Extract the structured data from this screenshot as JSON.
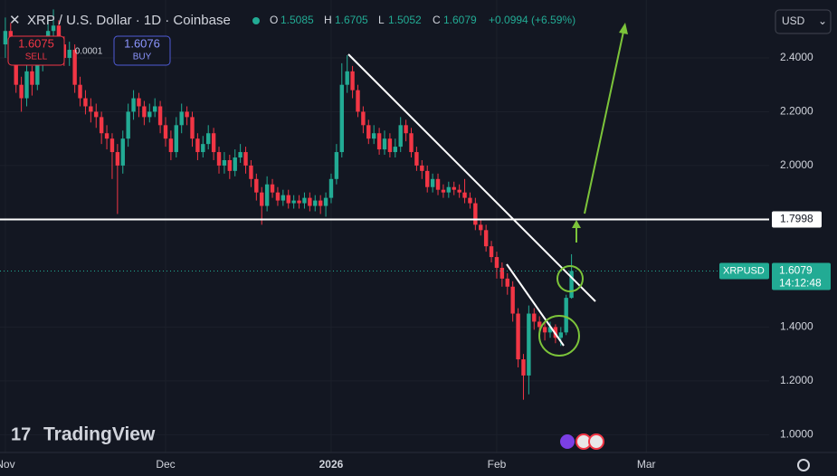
{
  "header": {
    "title": "XRP / U.S. Dollar · 1D · Coinbase",
    "o_label": "O",
    "h_label": "H",
    "l_label": "L",
    "c_label": "C",
    "change": "+0.0994 (+6.59%)",
    "sell_price": "1.6075",
    "sell": "SELL",
    "spread": "0.0001",
    "buy_price": "1.6076",
    "buy": "BUY",
    "currency": "USD",
    "symbol": "XRPUSD",
    "countdown": "14:12:48",
    "logo": "TradingView"
  },
  "chart_data": {
    "type": "candlestick",
    "up_color": "#22ab94",
    "down_color": "#f23645",
    "xlim": [
      -1,
      143
    ],
    "xticks": [
      {
        "value": 0,
        "label": "Nov"
      },
      {
        "value": 30,
        "label": "Dec"
      },
      {
        "value": 61,
        "label": "2026"
      },
      {
        "value": 92,
        "label": "Feb"
      },
      {
        "value": 120,
        "label": "Mar"
      }
    ],
    "ylim": [
      0.934,
      2.615
    ],
    "yticks": [
      {
        "value": 1.0,
        "label": "1.0000"
      },
      {
        "value": 1.2,
        "label": "1.2000"
      },
      {
        "value": 1.4,
        "label": "1.4000"
      },
      {
        "value": 2.0,
        "label": "2.0000"
      },
      {
        "value": 2.2,
        "label": "2.2000"
      },
      {
        "value": 2.4,
        "label": "2.4000"
      }
    ],
    "grid": true,
    "hline": {
      "value": 1.7998,
      "color": "#ffffff"
    },
    "ohlc": [
      [
        2.45,
        2.55,
        2.4,
        2.5
      ],
      [
        2.5,
        2.53,
        2.42,
        2.45
      ],
      [
        2.45,
        2.48,
        2.27,
        2.3
      ],
      [
        2.3,
        2.33,
        2.2,
        2.25
      ],
      [
        2.25,
        2.38,
        2.22,
        2.35
      ],
      [
        2.35,
        2.37,
        2.26,
        2.3
      ],
      [
        2.3,
        2.41,
        2.28,
        2.38
      ],
      [
        2.38,
        2.48,
        2.35,
        2.45
      ],
      [
        2.45,
        2.55,
        2.42,
        2.5
      ],
      [
        2.5,
        2.58,
        2.47,
        2.52
      ],
      [
        2.52,
        2.54,
        2.42,
        2.45
      ],
      [
        2.45,
        2.48,
        2.37,
        2.4
      ],
      [
        2.4,
        2.46,
        2.37,
        2.43
      ],
      [
        2.43,
        2.45,
        2.27,
        2.3
      ],
      [
        2.3,
        2.33,
        2.22,
        2.25
      ],
      [
        2.25,
        2.28,
        2.19,
        2.22
      ],
      [
        2.22,
        2.25,
        2.16,
        2.2
      ],
      [
        2.2,
        2.23,
        2.14,
        2.18
      ],
      [
        2.18,
        2.2,
        2.08,
        2.12
      ],
      [
        2.12,
        2.15,
        2.06,
        2.1
      ],
      [
        2.1,
        2.12,
        1.95,
        2.05
      ],
      [
        2.05,
        2.08,
        1.82,
        2.0
      ],
      [
        2.0,
        2.13,
        1.97,
        2.1
      ],
      [
        2.1,
        2.23,
        2.07,
        2.2
      ],
      [
        2.2,
        2.28,
        2.17,
        2.25
      ],
      [
        2.25,
        2.27,
        2.18,
        2.22
      ],
      [
        2.22,
        2.24,
        2.15,
        2.18
      ],
      [
        2.18,
        2.23,
        2.16,
        2.2
      ],
      [
        2.2,
        2.25,
        2.18,
        2.22
      ],
      [
        2.22,
        2.24,
        2.12,
        2.15
      ],
      [
        2.15,
        2.18,
        2.07,
        2.1
      ],
      [
        2.1,
        2.13,
        2.02,
        2.05
      ],
      [
        2.05,
        2.18,
        2.03,
        2.15
      ],
      [
        2.15,
        2.23,
        2.12,
        2.2
      ],
      [
        2.2,
        2.22,
        2.15,
        2.18
      ],
      [
        2.18,
        2.2,
        2.07,
        2.1
      ],
      [
        2.1,
        2.12,
        2.02,
        2.05
      ],
      [
        2.05,
        2.11,
        2.03,
        2.08
      ],
      [
        2.08,
        2.15,
        2.06,
        2.12
      ],
      [
        2.12,
        2.14,
        2.02,
        2.05
      ],
      [
        2.05,
        2.07,
        1.97,
        2.0
      ],
      [
        2.0,
        2.05,
        1.97,
        2.02
      ],
      [
        2.02,
        2.04,
        1.95,
        1.98
      ],
      [
        1.98,
        2.06,
        1.96,
        2.03
      ],
      [
        2.03,
        2.08,
        2.01,
        2.05
      ],
      [
        2.05,
        2.07,
        1.97,
        2.0
      ],
      [
        2.0,
        2.02,
        1.92,
        1.95
      ],
      [
        1.95,
        1.97,
        1.87,
        1.9
      ],
      [
        1.9,
        1.92,
        1.78,
        1.85
      ],
      [
        1.85,
        1.96,
        1.83,
        1.93
      ],
      [
        1.93,
        1.95,
        1.88,
        1.9
      ],
      [
        1.9,
        1.92,
        1.85,
        1.87
      ],
      [
        1.87,
        1.91,
        1.85,
        1.89
      ],
      [
        1.89,
        1.91,
        1.84,
        1.86
      ],
      [
        1.86,
        1.89,
        1.84,
        1.87
      ],
      [
        1.87,
        1.89,
        1.84,
        1.86
      ],
      [
        1.86,
        1.9,
        1.84,
        1.88
      ],
      [
        1.88,
        1.9,
        1.83,
        1.85
      ],
      [
        1.85,
        1.89,
        1.83,
        1.87
      ],
      [
        1.87,
        1.89,
        1.82,
        1.85
      ],
      [
        1.85,
        1.9,
        1.81,
        1.88
      ],
      [
        1.88,
        1.97,
        1.86,
        1.95
      ],
      [
        1.95,
        2.08,
        1.93,
        2.05
      ],
      [
        2.05,
        2.38,
        2.03,
        2.3
      ],
      [
        2.3,
        2.41,
        2.27,
        2.35
      ],
      [
        2.35,
        2.37,
        2.25,
        2.28
      ],
      [
        2.28,
        2.3,
        2.18,
        2.2
      ],
      [
        2.2,
        2.22,
        2.12,
        2.15
      ],
      [
        2.15,
        2.17,
        2.08,
        2.1
      ],
      [
        2.1,
        2.15,
        2.08,
        2.12
      ],
      [
        2.12,
        2.14,
        2.04,
        2.06
      ],
      [
        2.06,
        2.13,
        2.04,
        2.1
      ],
      [
        2.1,
        2.12,
        2.03,
        2.05
      ],
      [
        2.05,
        2.1,
        2.03,
        2.07
      ],
      [
        2.07,
        2.18,
        2.05,
        2.15
      ],
      [
        2.15,
        2.17,
        2.09,
        2.12
      ],
      [
        2.12,
        2.14,
        2.03,
        2.05
      ],
      [
        2.05,
        2.07,
        1.98,
        2.0
      ],
      [
        2.0,
        2.02,
        1.95,
        1.98
      ],
      [
        1.98,
        2.0,
        1.9,
        1.92
      ],
      [
        1.92,
        1.97,
        1.9,
        1.95
      ],
      [
        1.95,
        1.97,
        1.89,
        1.91
      ],
      [
        1.91,
        1.93,
        1.88,
        1.9
      ],
      [
        1.9,
        1.94,
        1.88,
        1.92
      ],
      [
        1.92,
        1.94,
        1.89,
        1.91
      ],
      [
        1.91,
        1.93,
        1.88,
        1.9
      ],
      [
        1.9,
        1.95,
        1.86,
        1.88
      ],
      [
        1.88,
        1.9,
        1.84,
        1.86
      ],
      [
        1.86,
        1.88,
        1.76,
        1.78
      ],
      [
        1.78,
        1.8,
        1.74,
        1.76
      ],
      [
        1.76,
        1.78,
        1.68,
        1.7
      ],
      [
        1.7,
        1.72,
        1.64,
        1.66
      ],
      [
        1.66,
        1.68,
        1.58,
        1.62
      ],
      [
        1.62,
        1.64,
        1.55,
        1.58
      ],
      [
        1.58,
        1.6,
        1.52,
        1.55
      ],
      [
        1.55,
        1.57,
        1.42,
        1.45
      ],
      [
        1.45,
        1.47,
        1.25,
        1.28
      ],
      [
        1.28,
        1.3,
        1.13,
        1.22
      ],
      [
        1.22,
        1.48,
        1.15,
        1.45
      ],
      [
        1.45,
        1.47,
        1.39,
        1.42
      ],
      [
        1.42,
        1.44,
        1.37,
        1.4
      ],
      [
        1.4,
        1.42,
        1.35,
        1.38
      ],
      [
        1.38,
        1.42,
        1.36,
        1.4
      ],
      [
        1.4,
        1.41,
        1.34,
        1.36
      ],
      [
        1.36,
        1.4,
        1.33,
        1.38
      ],
      [
        1.38,
        1.52,
        1.37,
        1.5085
      ],
      [
        1.5085,
        1.6705,
        1.5052,
        1.6079
      ]
    ]
  }
}
